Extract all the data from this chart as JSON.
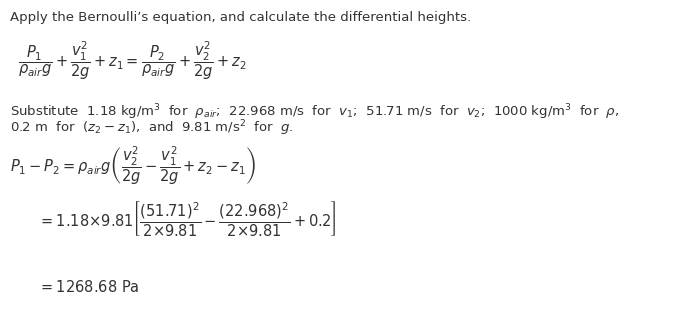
{
  "background_color": "#ffffff",
  "fig_width": 6.99,
  "fig_height": 3.34,
  "dpi": 100,
  "title": "Apply the Bernoulli’s equation, and calculate the differential heights.",
  "eq1": "$\\dfrac{P_1}{\\rho_{air}g} + \\dfrac{v_1^2}{2g} + z_1 = \\dfrac{P_2}{\\rho_{air}g} + \\dfrac{v_2^2}{2g} + z_2$",
  "sub1": "Substitute  1.18 kg/m$^3$  for  $\\rho_{air}$;  22.968 m/s  $^{\\mathrm{for}}$  $v_1$;  51.71 m/s  for  $v_2$;  1000 kg/m$^3$  for  $\\rho$,",
  "sub2": "0.2 m  for  $(z_2 - z_1)$,  and  9.81 m/s$^2$  for  $g$.",
  "eq2": "$P_1 - P_2 = \\rho_{air}g\\left(\\dfrac{v_2^2}{2g} - \\dfrac{v_1^2}{2g} + z_2 - z_1\\right)$",
  "eq3": "$= 1.18{\\times}9.81\\left[\\dfrac{(51.71)^2}{2{\\times}9.81} - \\dfrac{(22.968)^2}{2{\\times}9.81} + 0.2\\right]$",
  "eq4": "$= 1268.68\\ \\mathrm{Pa}$"
}
